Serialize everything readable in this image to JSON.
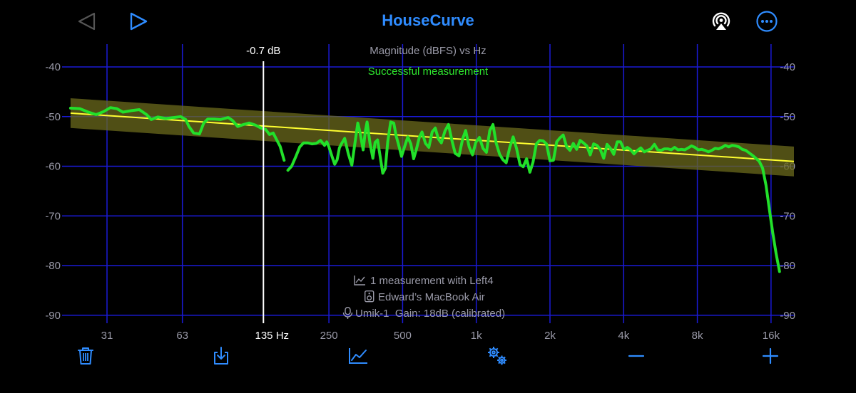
{
  "header": {
    "title": "HouseCurve",
    "icons": [
      "back-triangle-icon",
      "play-triangle-icon",
      "airplay-icon",
      "more-ellipsis-icon"
    ]
  },
  "colors": {
    "accent": "#2f8cff",
    "grid": "#1a1ad6",
    "curve": "#22e02a",
    "target": "#ffff30",
    "target_band": "#6b6a1c",
    "axis_label": "#9a9aa8",
    "status": "#2ee82e"
  },
  "chart_data": {
    "type": "line",
    "title": "Magnitude (dBFS) vs Hz",
    "status": "Successful measurement",
    "x_scale": "log",
    "xlim": [
      22,
      20000
    ],
    "ylim": [
      -92,
      -36
    ],
    "grid": true,
    "x_ticks": [
      {
        "value": 31,
        "label": "31"
      },
      {
        "value": 63,
        "label": "63"
      },
      {
        "value": 250,
        "label": "250"
      },
      {
        "value": 500,
        "label": "500"
      },
      {
        "value": 1000,
        "label": "1k"
      },
      {
        "value": 2000,
        "label": "2k"
      },
      {
        "value": 4000,
        "label": "4k"
      },
      {
        "value": 8000,
        "label": "8k"
      },
      {
        "value": 16000,
        "label": "16k"
      }
    ],
    "y_ticks": [
      {
        "value": -40,
        "label": "-40"
      },
      {
        "value": -50,
        "label": "-50"
      },
      {
        "value": -60,
        "label": "-60"
      },
      {
        "value": -70,
        "label": "-70"
      },
      {
        "value": -80,
        "label": "-80"
      },
      {
        "value": -90,
        "label": "-90"
      }
    ],
    "cursor": {
      "freq": 135,
      "freq_label": "135 Hz",
      "value_label": "-0.7 dB"
    },
    "target_curve": {
      "points": [
        [
          22,
          -49.3
        ],
        [
          18000,
          -58.9
        ]
      ],
      "band_db": 3
    },
    "series": [
      {
        "points": [
          [
            22,
            -48.3
          ],
          [
            24,
            -48.4
          ],
          [
            26,
            -49.1
          ],
          [
            28,
            -49.6
          ],
          [
            30,
            -49
          ],
          [
            32,
            -48.2
          ],
          [
            34,
            -48.4
          ],
          [
            36,
            -49.1
          ],
          [
            39,
            -48.8
          ],
          [
            42,
            -48.6
          ],
          [
            45,
            -49.6
          ],
          [
            47,
            -50.6
          ],
          [
            50,
            -50.1
          ],
          [
            54,
            -50.4
          ],
          [
            58,
            -50.2
          ],
          [
            62,
            -50
          ],
          [
            65,
            -50.6
          ],
          [
            67,
            -52
          ],
          [
            70,
            -53.3
          ],
          [
            74,
            -53.5
          ],
          [
            77,
            -51.3
          ],
          [
            80,
            -50.5
          ],
          [
            85,
            -50.5
          ],
          [
            90,
            -50.6
          ],
          [
            97,
            -50.2
          ],
          [
            101,
            -50.8
          ],
          [
            106,
            -52
          ],
          [
            112,
            -51.6
          ],
          [
            118,
            -51.3
          ],
          [
            125,
            -51.7
          ],
          [
            132,
            -52.3
          ],
          [
            138,
            -52.6
          ],
          [
            143,
            -53.6
          ],
          [
            148,
            -53.3
          ],
          [
            153,
            -54.7
          ],
          [
            158,
            -56
          ],
          [
            164,
            -58.8
          ],
          [
            170,
            -60.8
          ],
          [
            176,
            -60
          ],
          [
            183,
            -58.1
          ],
          [
            190,
            -56.1
          ],
          [
            197,
            -55.3
          ],
          [
            205,
            -55.3
          ],
          [
            213,
            -55.5
          ],
          [
            222,
            -55.4
          ],
          [
            231,
            -54.8
          ],
          [
            240,
            -55.8
          ],
          [
            245,
            -55.1
          ],
          [
            250,
            -56.1
          ],
          [
            258,
            -58.2
          ],
          [
            264,
            -59.6
          ],
          [
            270,
            -58.7
          ],
          [
            276,
            -56.3
          ],
          [
            282,
            -55.4
          ],
          [
            290,
            -54.4
          ],
          [
            300,
            -57.5
          ],
          [
            310,
            -59.8
          ],
          [
            320,
            -55
          ],
          [
            328,
            -51.3
          ],
          [
            335,
            -53.2
          ],
          [
            345,
            -56.7
          ],
          [
            352,
            -53
          ],
          [
            358,
            -51.1
          ],
          [
            368,
            -55.4
          ],
          [
            378,
            -58.4
          ],
          [
            386,
            -55.2
          ],
          [
            395,
            -54.7
          ],
          [
            405,
            -58.1
          ],
          [
            415,
            -61.4
          ],
          [
            425,
            -60.4
          ],
          [
            435,
            -55
          ],
          [
            447,
            -51.1
          ],
          [
            460,
            -51.3
          ],
          [
            470,
            -53.8
          ],
          [
            480,
            -55.4
          ],
          [
            495,
            -58
          ],
          [
            510,
            -56
          ],
          [
            525,
            -54.1
          ],
          [
            540,
            -55.5
          ],
          [
            555,
            -58.5
          ],
          [
            570,
            -56.5
          ],
          [
            585,
            -54.2
          ],
          [
            600,
            -53.1
          ],
          [
            620,
            -55.4
          ],
          [
            640,
            -56.2
          ],
          [
            660,
            -53.1
          ],
          [
            680,
            -52.3
          ],
          [
            700,
            -54.5
          ],
          [
            720,
            -55.3
          ],
          [
            745,
            -52.9
          ],
          [
            770,
            -51.6
          ],
          [
            795,
            -54.8
          ],
          [
            820,
            -57.4
          ],
          [
            850,
            -57.9
          ],
          [
            880,
            -54.5
          ],
          [
            905,
            -52.8
          ],
          [
            935,
            -56.1
          ],
          [
            965,
            -57.7
          ],
          [
            995,
            -55.2
          ],
          [
            1030,
            -54.2
          ],
          [
            1065,
            -56.4
          ],
          [
            1100,
            -57.2
          ],
          [
            1135,
            -52.8
          ],
          [
            1170,
            -51.6
          ],
          [
            1205,
            -55.3
          ],
          [
            1245,
            -57.6
          ],
          [
            1285,
            -58.7
          ],
          [
            1325,
            -59.3
          ],
          [
            1370,
            -56.2
          ],
          [
            1415,
            -54.1
          ],
          [
            1460,
            -56.4
          ],
          [
            1510,
            -59.7
          ],
          [
            1555,
            -60.1
          ],
          [
            1605,
            -58.5
          ],
          [
            1655,
            -61.2
          ],
          [
            1705,
            -59.2
          ],
          [
            1760,
            -55.5
          ],
          [
            1815,
            -54.8
          ],
          [
            1875,
            -54.9
          ],
          [
            1935,
            -55.5
          ],
          [
            2000,
            -58.9
          ],
          [
            2065,
            -58.8
          ],
          [
            2130,
            -55.1
          ],
          [
            2195,
            -54.3
          ],
          [
            2265,
            -53.7
          ],
          [
            2340,
            -56.1
          ],
          [
            2415,
            -56.8
          ],
          [
            2490,
            -55.4
          ],
          [
            2570,
            -56.6
          ],
          [
            2655,
            -54.8
          ],
          [
            2740,
            -55.3
          ],
          [
            2830,
            -55.9
          ],
          [
            2920,
            -57.7
          ],
          [
            3015,
            -55.5
          ],
          [
            3110,
            -55.8
          ],
          [
            3210,
            -56.6
          ],
          [
            3315,
            -58.4
          ],
          [
            3420,
            -55.6
          ],
          [
            3530,
            -56.4
          ],
          [
            3645,
            -57.6
          ],
          [
            3765,
            -55.1
          ],
          [
            3885,
            -55.1
          ],
          [
            4010,
            -56.6
          ],
          [
            4140,
            -56.2
          ],
          [
            4275,
            -56.7
          ],
          [
            4410,
            -57.5
          ],
          [
            4555,
            -56.8
          ],
          [
            4700,
            -56.3
          ],
          [
            4855,
            -57.1
          ],
          [
            5010,
            -56.8
          ],
          [
            5170,
            -56.5
          ],
          [
            5340,
            -55.6
          ],
          [
            5510,
            -56.7
          ],
          [
            5690,
            -56.8
          ],
          [
            5870,
            -56.5
          ],
          [
            6060,
            -56.5
          ],
          [
            6260,
            -56.7
          ],
          [
            6460,
            -56.2
          ],
          [
            6670,
            -56.7
          ],
          [
            6880,
            -56.6
          ],
          [
            7110,
            -56.7
          ],
          [
            7340,
            -56.3
          ],
          [
            7570,
            -55.9
          ],
          [
            7820,
            -56.2
          ],
          [
            8070,
            -56.7
          ],
          [
            8330,
            -56.6
          ],
          [
            8600,
            -56.8
          ],
          [
            8880,
            -57.1
          ],
          [
            9170,
            -56.8
          ],
          [
            9460,
            -56.4
          ],
          [
            9770,
            -56.5
          ],
          [
            10090,
            -56.2
          ],
          [
            10410,
            -55.8
          ],
          [
            10750,
            -56.1
          ],
          [
            11100,
            -55.8
          ],
          [
            11460,
            -55.9
          ],
          [
            11830,
            -56.1
          ],
          [
            12210,
            -56.6
          ],
          [
            12610,
            -56.8
          ],
          [
            13010,
            -57.3
          ],
          [
            13430,
            -57.8
          ],
          [
            13870,
            -58.4
          ],
          [
            14310,
            -59
          ],
          [
            14780,
            -60.4
          ],
          [
            15260,
            -63.8
          ],
          [
            15750,
            -68.7
          ],
          [
            16260,
            -73.4
          ],
          [
            16780,
            -77.6
          ],
          [
            17330,
            -81.2
          ]
        ]
      }
    ],
    "annotations": [
      {
        "icon": "chart-line-icon",
        "text": "1 measurement with Left4"
      },
      {
        "icon": "speaker-icon",
        "text": "Edward’s MacBook Air"
      },
      {
        "icon": "microphone-icon",
        "text": "Umik-1  Gain: 18dB (calibrated)"
      }
    ]
  },
  "toolbar": {
    "icons": [
      "trash-icon",
      "download-tray-icon",
      "chart-icon",
      "gears-icon",
      "minus-icon",
      "plus-icon"
    ]
  }
}
